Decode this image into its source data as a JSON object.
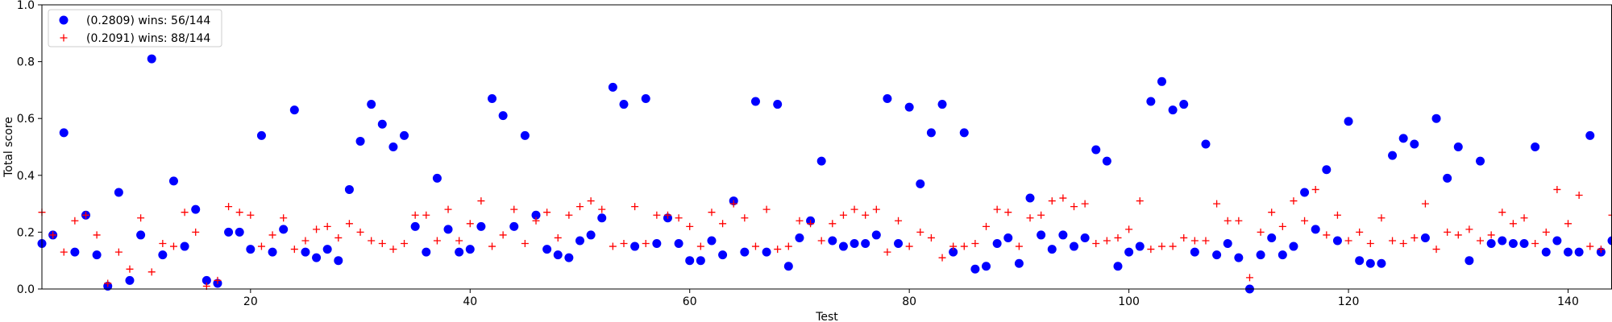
{
  "chart_data": {
    "type": "scatter",
    "xlabel": "Test",
    "ylabel": "Total score",
    "xlim": [
      1,
      144
    ],
    "ylim": [
      0,
      1.0
    ],
    "xticks": [
      20,
      40,
      60,
      80,
      100,
      120,
      140
    ],
    "yticks": [
      0.0,
      0.2,
      0.4,
      0.6,
      0.8,
      1.0
    ],
    "legend_position": "top-left",
    "grid": false,
    "series": [
      {
        "name": "(0.2809) wins: 56/144",
        "marker": "circle",
        "color": "#0000ff",
        "x": [
          1,
          2,
          3,
          4,
          5,
          6,
          7,
          8,
          9,
          10,
          11,
          12,
          13,
          14,
          15,
          16,
          17,
          18,
          19,
          20,
          21,
          22,
          23,
          24,
          25,
          26,
          27,
          28,
          29,
          30,
          31,
          32,
          33,
          34,
          35,
          36,
          37,
          38,
          39,
          40,
          41,
          42,
          43,
          44,
          45,
          46,
          47,
          48,
          49,
          50,
          51,
          52,
          53,
          54,
          55,
          56,
          57,
          58,
          59,
          60,
          61,
          62,
          63,
          64,
          65,
          66,
          67,
          68,
          69,
          70,
          71,
          72,
          73,
          74,
          75,
          76,
          77,
          78,
          79,
          80,
          81,
          82,
          83,
          84,
          85,
          86,
          87,
          88,
          89,
          90,
          91,
          92,
          93,
          94,
          95,
          96,
          97,
          98,
          99,
          100,
          101,
          102,
          103,
          104,
          105,
          106,
          107,
          108,
          109,
          110,
          111,
          112,
          113,
          114,
          115,
          116,
          117,
          118,
          119,
          120,
          121,
          122,
          123,
          124,
          125,
          126,
          127,
          128,
          129,
          130,
          131,
          132,
          133,
          134,
          135,
          136,
          137,
          138,
          139,
          140,
          141,
          142,
          143,
          144
        ],
        "y": [
          0.16,
          0.19,
          0.55,
          0.13,
          0.26,
          0.12,
          0.01,
          0.34,
          0.03,
          0.19,
          0.81,
          0.12,
          0.38,
          0.15,
          0.28,
          0.03,
          0.02,
          0.2,
          0.2,
          0.14,
          0.54,
          0.13,
          0.21,
          0.63,
          0.13,
          0.11,
          0.14,
          0.1,
          0.35,
          0.52,
          0.65,
          0.58,
          0.5,
          0.54,
          0.22,
          0.13,
          0.39,
          0.21,
          0.13,
          0.14,
          0.22,
          0.67,
          0.61,
          0.22,
          0.54,
          0.26,
          0.14,
          0.12,
          0.11,
          0.17,
          0.19,
          0.25,
          0.71,
          0.65,
          0.15,
          0.67,
          0.16,
          0.25,
          0.16,
          0.1,
          0.1,
          0.17,
          0.12,
          0.31,
          0.13,
          0.66,
          0.13,
          0.65,
          0.08,
          0.18,
          0.24,
          0.45,
          0.17,
          0.15,
          0.16,
          0.16,
          0.19,
          0.67,
          0.16,
          0.64,
          0.37,
          0.55,
          0.65,
          0.13,
          0.55,
          0.07,
          0.08,
          0.16,
          0.18,
          0.09,
          0.32,
          0.19,
          0.14,
          0.19,
          0.15,
          0.18,
          0.49,
          0.45,
          0.08,
          0.13,
          0.15,
          0.66,
          0.73,
          0.63,
          0.65,
          0.13,
          0.51,
          0.12,
          0.16,
          0.11,
          0.0,
          0.12,
          0.18,
          0.12,
          0.15,
          0.34,
          0.21,
          0.42,
          0.17,
          0.59,
          0.1,
          0.09,
          0.09,
          0.47,
          0.53,
          0.51,
          0.18,
          0.6,
          0.39,
          0.5,
          0.1,
          0.45,
          0.16,
          0.17,
          0.16,
          0.16,
          0.5,
          0.13,
          0.17,
          0.13,
          0.13,
          0.54,
          0.13,
          0.17
        ]
      },
      {
        "name": "(0.2091) wins: 88/144",
        "marker": "plus",
        "color": "#ff0000",
        "x": [
          1,
          2,
          3,
          4,
          5,
          6,
          7,
          8,
          9,
          10,
          11,
          12,
          13,
          14,
          15,
          16,
          17,
          18,
          19,
          20,
          21,
          22,
          23,
          24,
          25,
          26,
          27,
          28,
          29,
          30,
          31,
          32,
          33,
          34,
          35,
          36,
          37,
          38,
          39,
          40,
          41,
          42,
          43,
          44,
          45,
          46,
          47,
          48,
          49,
          50,
          51,
          52,
          53,
          54,
          55,
          56,
          57,
          58,
          59,
          60,
          61,
          62,
          63,
          64,
          65,
          66,
          67,
          68,
          69,
          70,
          71,
          72,
          73,
          74,
          75,
          76,
          77,
          78,
          79,
          80,
          81,
          82,
          83,
          84,
          85,
          86,
          87,
          88,
          89,
          90,
          91,
          92,
          93,
          94,
          95,
          96,
          97,
          98,
          99,
          100,
          101,
          102,
          103,
          104,
          105,
          106,
          107,
          108,
          109,
          110,
          111,
          112,
          113,
          114,
          115,
          116,
          117,
          118,
          119,
          120,
          121,
          122,
          123,
          124,
          125,
          126,
          127,
          128,
          129,
          130,
          131,
          132,
          133,
          134,
          135,
          136,
          137,
          138,
          139,
          140,
          141,
          142,
          143,
          144
        ],
        "y": [
          0.27,
          0.19,
          0.13,
          0.24,
          0.26,
          0.19,
          0.02,
          0.13,
          0.07,
          0.25,
          0.06,
          0.16,
          0.15,
          0.27,
          0.2,
          0.01,
          0.03,
          0.29,
          0.27,
          0.26,
          0.15,
          0.19,
          0.25,
          0.14,
          0.17,
          0.21,
          0.22,
          0.18,
          0.23,
          0.2,
          0.17,
          0.16,
          0.14,
          0.16,
          0.26,
          0.26,
          0.17,
          0.28,
          0.17,
          0.23,
          0.31,
          0.15,
          0.19,
          0.28,
          0.16,
          0.24,
          0.27,
          0.18,
          0.26,
          0.29,
          0.31,
          0.28,
          0.15,
          0.16,
          0.29,
          0.16,
          0.26,
          0.26,
          0.25,
          0.22,
          0.15,
          0.27,
          0.23,
          0.3,
          0.25,
          0.15,
          0.28,
          0.14,
          0.15,
          0.24,
          0.23,
          0.17,
          0.23,
          0.26,
          0.28,
          0.26,
          0.28,
          0.13,
          0.24,
          0.15,
          0.2,
          0.18,
          0.11,
          0.15,
          0.15,
          0.16,
          0.22,
          0.28,
          0.27,
          0.15,
          0.25,
          0.26,
          0.31,
          0.32,
          0.29,
          0.3,
          0.16,
          0.17,
          0.18,
          0.21,
          0.31,
          0.14,
          0.15,
          0.15,
          0.18,
          0.17,
          0.17,
          0.3,
          0.24,
          0.24,
          0.04,
          0.2,
          0.27,
          0.22,
          0.31,
          0.24,
          0.35,
          0.19,
          0.26,
          0.17,
          0.2,
          0.16,
          0.25,
          0.17,
          0.16,
          0.18,
          0.3,
          0.14,
          0.2,
          0.19,
          0.21,
          0.17,
          0.19,
          0.27,
          0.23,
          0.25,
          0.16,
          0.2,
          0.35,
          0.23,
          0.33,
          0.15,
          0.14,
          0.26
        ]
      }
    ]
  }
}
